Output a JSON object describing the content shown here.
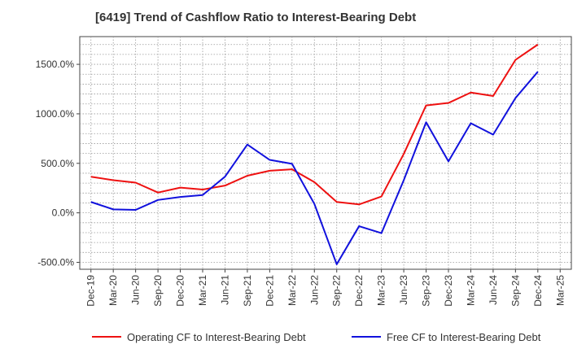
{
  "chart_data": {
    "type": "line",
    "title": "[6419]  Trend of Cashflow Ratio to Interest-Bearing Debt",
    "xlabel": "",
    "ylabel": "",
    "categories": [
      "Dec-19",
      "Mar-20",
      "Jun-20",
      "Sep-20",
      "Dec-20",
      "Mar-21",
      "Jun-21",
      "Sep-21",
      "Dec-21",
      "Mar-22",
      "Jun-22",
      "Sep-22",
      "Dec-22",
      "Mar-23",
      "Jun-23",
      "Sep-23",
      "Dec-23",
      "Mar-24",
      "Jun-24",
      "Sep-24",
      "Dec-24",
      "Mar-25"
    ],
    "yticks": [
      -500,
      0,
      500,
      1000,
      1500
    ],
    "ytick_labels": [
      "-500.0%",
      "0.0%",
      "500.0%",
      "1000.0%",
      "1500.0%"
    ],
    "ylim": [
      -570,
      1780
    ],
    "grid": true,
    "legend_position": "bottom",
    "series": [
      {
        "name": "Operating CF to Interest-Bearing Debt",
        "color": "#ee1111",
        "values": [
          365,
          330,
          305,
          205,
          255,
          235,
          275,
          375,
          425,
          440,
          310,
          110,
          85,
          165,
          595,
          1085,
          1110,
          1215,
          1180,
          1545,
          1700,
          null
        ]
      },
      {
        "name": "Free CF to Interest-Bearing Debt",
        "color": "#1111dd",
        "values": [
          110,
          35,
          30,
          130,
          160,
          180,
          365,
          690,
          535,
          495,
          90,
          -520,
          -135,
          -205,
          330,
          915,
          520,
          905,
          790,
          1160,
          1425,
          null
        ]
      }
    ]
  }
}
